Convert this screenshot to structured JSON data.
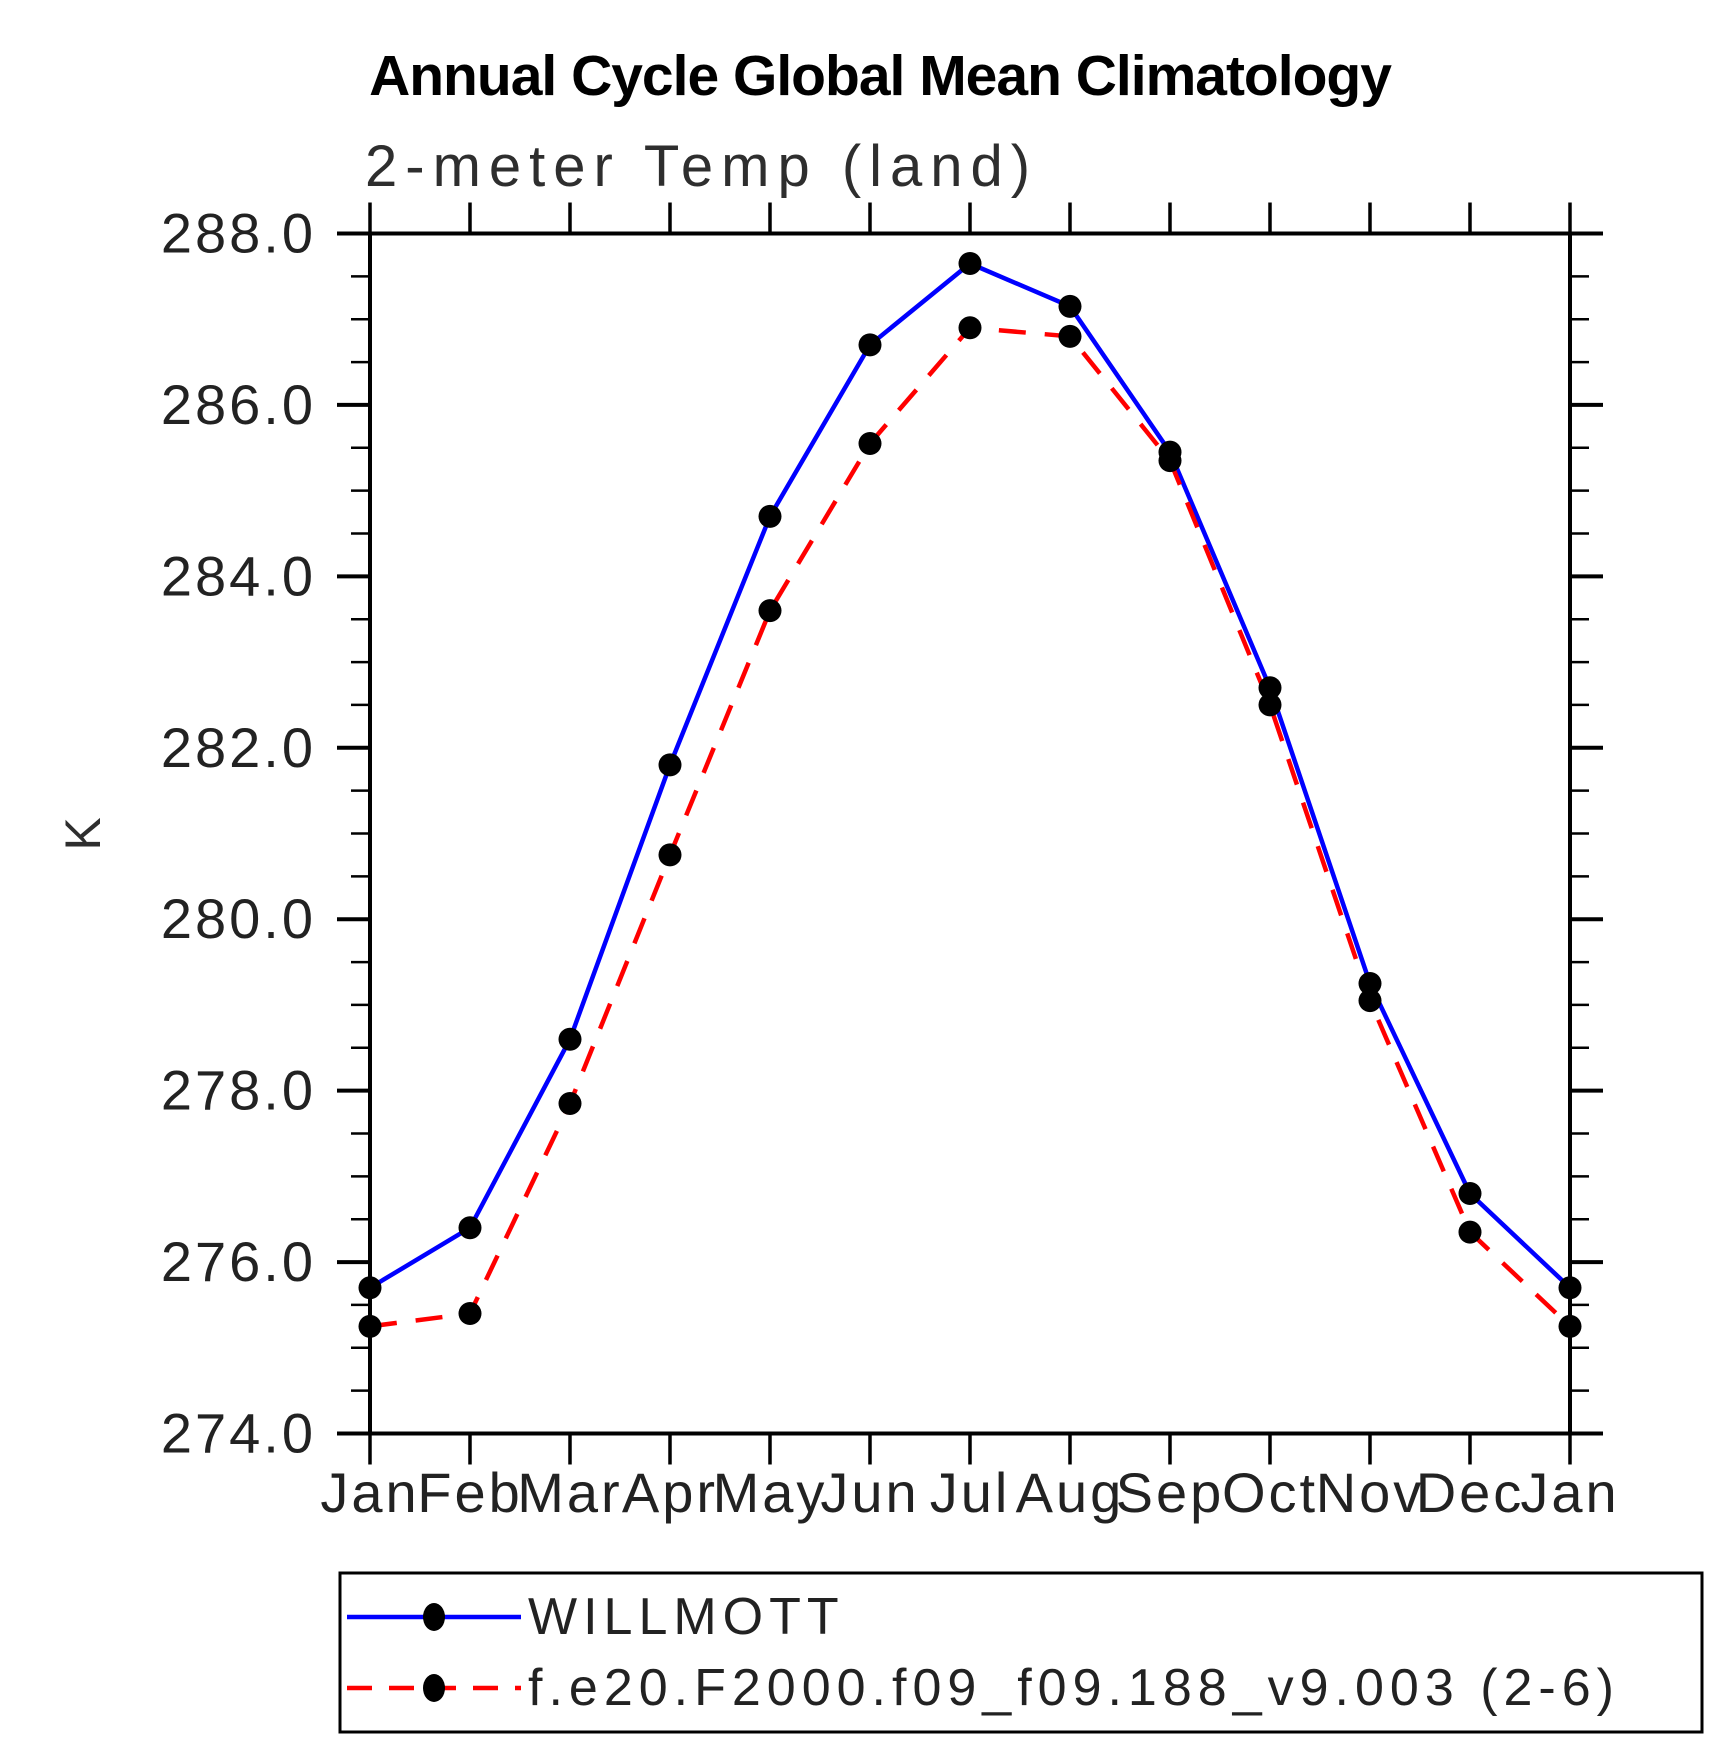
{
  "title": "Annual Cycle Global Mean Climatology",
  "subtitle": "2-meter Temp (land)",
  "chart_data": {
    "type": "line",
    "title": "Annual Cycle Global Mean Climatology",
    "subtitle": "2-meter Temp (land)",
    "ylabel": "K",
    "xlabel": "",
    "categories": [
      "Jan",
      "Feb",
      "Mar",
      "Apr",
      "May",
      "Jun",
      "Jul",
      "Aug",
      "Sep",
      "Oct",
      "Nov",
      "Dec",
      "Jan"
    ],
    "ylim": [
      274.0,
      288.0
    ],
    "y_major_step": 2.0,
    "y_minor_step": 0.5,
    "y_tick_labels": [
      "274.0",
      "276.0",
      "278.0",
      "280.0",
      "282.0",
      "284.0",
      "286.0",
      "288.0"
    ],
    "grid": false,
    "legend_position": "bottom-left",
    "series": [
      {
        "name": "WILLMOTT",
        "color": "#0000ff",
        "style": "solid",
        "marker": "circle",
        "marker_color": "#000000",
        "values": [
          275.7,
          276.4,
          278.6,
          281.8,
          284.7,
          286.7,
          287.65,
          287.15,
          285.45,
          282.7,
          279.25,
          276.8,
          275.7
        ]
      },
      {
        "name": "f.e20.F2000.f09_f09.188_v9.003 (2-6)",
        "color": "#ff0000",
        "style": "dashed",
        "marker": "circle",
        "marker_color": "#000000",
        "values": [
          275.25,
          275.4,
          277.85,
          280.75,
          283.6,
          285.55,
          286.9,
          286.8,
          285.35,
          282.5,
          279.05,
          276.35,
          275.25
        ]
      }
    ]
  },
  "colors": {
    "axis": "#000000",
    "series_blue": "#0000ff",
    "series_red": "#ff0000",
    "marker": "#000000",
    "background": "#ffffff"
  }
}
